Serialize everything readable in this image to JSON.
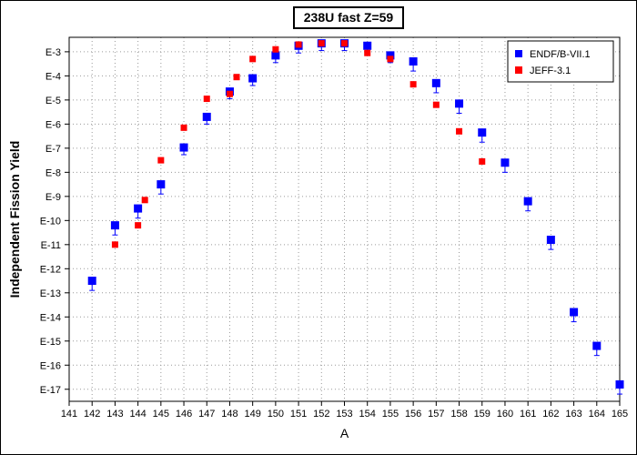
{
  "chart_data": {
    "type": "scatter",
    "title": "238U fast Z=59",
    "xlabel": "A",
    "ylabel": "Independent Fission Yield",
    "xlim": [
      141,
      165
    ],
    "ylim_exponent": [
      -17.5,
      -2.4
    ],
    "yscale": "log",
    "x_ticks": [
      "141",
      "142",
      "143",
      "144",
      "145",
      "146",
      "147",
      "148",
      "149",
      "150",
      "151",
      "152",
      "153",
      "154",
      "155",
      "156",
      "157",
      "158",
      "159",
      "160",
      "161",
      "162",
      "163",
      "164",
      "165"
    ],
    "y_ticks": [
      {
        "exp": -3,
        "label": "E-3"
      },
      {
        "exp": -4,
        "label": "E-4"
      },
      {
        "exp": -5,
        "label": "E-5"
      },
      {
        "exp": -6,
        "label": "E-6"
      },
      {
        "exp": -7,
        "label": "E-7"
      },
      {
        "exp": -8,
        "label": "E-8"
      },
      {
        "exp": -9,
        "label": "E-9"
      },
      {
        "exp": -10,
        "label": "E-10"
      },
      {
        "exp": -11,
        "label": "E-11"
      },
      {
        "exp": -12,
        "label": "E-12"
      },
      {
        "exp": -13,
        "label": "E-13"
      },
      {
        "exp": -14,
        "label": "E-14"
      },
      {
        "exp": -15,
        "label": "E-15"
      },
      {
        "exp": -16,
        "label": "E-16"
      },
      {
        "exp": -17,
        "label": "E-17"
      }
    ],
    "grid": true,
    "legend_position": "top-right",
    "series": [
      {
        "name": "ENDF/B-VII.1",
        "color": "#0000ff",
        "marker": "square",
        "points": [
          {
            "x": 142,
            "log10y": -12.5,
            "err_down": 0.4
          },
          {
            "x": 143,
            "log10y": -10.2,
            "err_down": 0.4
          },
          {
            "x": 144,
            "log10y": -9.5,
            "err_down": 0.4
          },
          {
            "x": 145,
            "log10y": -8.5,
            "err_down": 0.4
          },
          {
            "x": 146,
            "log10y": -6.97,
            "err_down": 0.3
          },
          {
            "x": 147,
            "log10y": -5.7,
            "err_down": 0.3
          },
          {
            "x": 148,
            "log10y": -4.65,
            "err_down": 0.3
          },
          {
            "x": 149,
            "log10y": -4.1,
            "err_down": 0.3
          },
          {
            "x": 150,
            "log10y": -3.15,
            "err_down": 0.3
          },
          {
            "x": 151,
            "log10y": -2.75,
            "err_down": 0.3
          },
          {
            "x": 152,
            "log10y": -2.65,
            "err_down": 0.3
          },
          {
            "x": 153,
            "log10y": -2.65,
            "err_down": 0.3
          },
          {
            "x": 154,
            "log10y": -2.75,
            "err_down": 0.3
          },
          {
            "x": 155,
            "log10y": -3.15,
            "err_down": 0.3
          },
          {
            "x": 156,
            "log10y": -3.4,
            "err_down": 0.4
          },
          {
            "x": 157,
            "log10y": -4.3,
            "err_down": 0.4
          },
          {
            "x": 158,
            "log10y": -5.15,
            "err_down": 0.4
          },
          {
            "x": 159,
            "log10y": -6.35,
            "err_down": 0.4
          },
          {
            "x": 160,
            "log10y": -7.6,
            "err_down": 0.4
          },
          {
            "x": 161,
            "log10y": -9.2,
            "err_down": 0.4
          },
          {
            "x": 162,
            "log10y": -10.8,
            "err_down": 0.4
          },
          {
            "x": 163,
            "log10y": -13.8,
            "err_down": 0.4
          },
          {
            "x": 164,
            "log10y": -15.2,
            "err_down": 0.4
          },
          {
            "x": 165,
            "log10y": -16.8,
            "err_down": 0.4
          }
        ]
      },
      {
        "name": "JEFF-3.1",
        "color": "#ff0000",
        "marker": "square",
        "points": [
          {
            "x": 143,
            "log10y": -11.0
          },
          {
            "x": 144,
            "log10y": -10.2
          },
          {
            "x": 144.3,
            "log10y": -9.15
          },
          {
            "x": 145,
            "log10y": -7.5
          },
          {
            "x": 146,
            "log10y": -6.15
          },
          {
            "x": 147,
            "log10y": -4.95
          },
          {
            "x": 148,
            "log10y": -4.75
          },
          {
            "x": 148.3,
            "log10y": -4.05
          },
          {
            "x": 149,
            "log10y": -3.3
          },
          {
            "x": 150,
            "log10y": -2.9
          },
          {
            "x": 151,
            "log10y": -2.7
          },
          {
            "x": 152,
            "log10y": -2.65
          },
          {
            "x": 153,
            "log10y": -2.65
          },
          {
            "x": 154,
            "log10y": -3.05
          },
          {
            "x": 155,
            "log10y": -3.3
          },
          {
            "x": 156,
            "log10y": -4.35
          },
          {
            "x": 157,
            "log10y": -5.2
          },
          {
            "x": 158,
            "log10y": -6.3
          },
          {
            "x": 159,
            "log10y": -7.55
          }
        ]
      }
    ]
  }
}
